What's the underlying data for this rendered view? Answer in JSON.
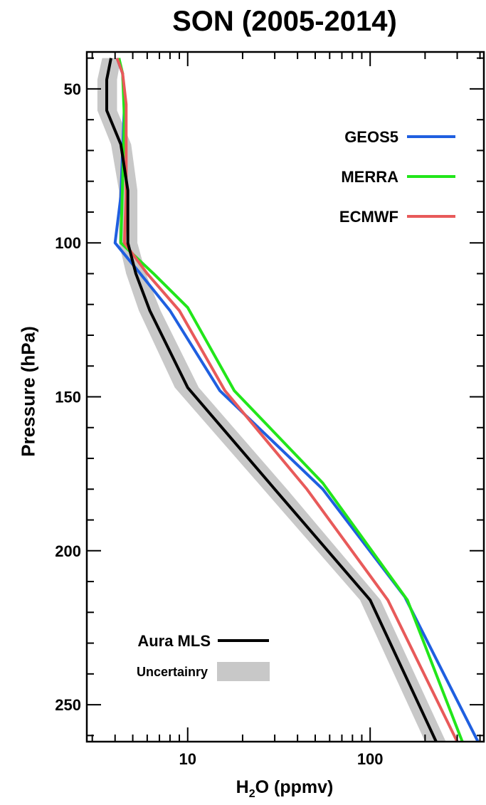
{
  "chart_data": {
    "type": "line",
    "title": "SON (2005-2014)",
    "xlabel_main": "H",
    "xlabel_sub": "2",
    "xlabel_rest": "O (ppmv)",
    "ylabel": "Pressure (hPa)",
    "x_scale": "log",
    "xlim": [
      2.8,
      420
    ],
    "ylim": [
      262,
      38
    ],
    "x_ticks": [
      10,
      100
    ],
    "x_tick_labels": [
      "10",
      "100"
    ],
    "y_ticks": [
      50,
      100,
      150,
      200,
      250
    ],
    "y_tick_labels": [
      "50",
      "100",
      "150",
      "200",
      "250"
    ],
    "series": [
      {
        "name": "GEOS5",
        "color": "#1f5fe0",
        "points": [
          [
            4.1,
            40
          ],
          [
            4.4,
            45
          ],
          [
            4.5,
            55
          ],
          [
            4.4,
            70
          ],
          [
            4.3,
            85
          ],
          [
            4.0,
            100
          ],
          [
            5.5,
            110
          ],
          [
            8,
            122
          ],
          [
            15,
            148
          ],
          [
            55,
            180
          ],
          [
            155,
            215
          ],
          [
            390,
            262
          ]
        ]
      },
      {
        "name": "MERRA",
        "color": "#22e61a",
        "points": [
          [
            4.2,
            40
          ],
          [
            4.4,
            45
          ],
          [
            4.5,
            60
          ],
          [
            4.4,
            80
          ],
          [
            4.3,
            100
          ],
          [
            6.5,
            110
          ],
          [
            10,
            121
          ],
          [
            18,
            148
          ],
          [
            55,
            178
          ],
          [
            160,
            216
          ],
          [
            320,
            262
          ]
        ]
      },
      {
        "name": "ECMWF",
        "color": "#e85a5a",
        "points": [
          [
            4.1,
            40
          ],
          [
            4.4,
            45
          ],
          [
            4.6,
            55
          ],
          [
            4.6,
            70
          ],
          [
            4.6,
            85
          ],
          [
            4.5,
            100
          ],
          [
            6.0,
            110
          ],
          [
            9,
            122
          ],
          [
            16,
            148
          ],
          [
            45,
            180
          ],
          [
            125,
            216
          ],
          [
            300,
            262
          ]
        ]
      },
      {
        "name": "Aura MLS",
        "color": "#000000",
        "points": [
          [
            3.8,
            40
          ],
          [
            3.6,
            47
          ],
          [
            3.6,
            57
          ],
          [
            4.3,
            68
          ],
          [
            4.7,
            83
          ],
          [
            4.7,
            100
          ],
          [
            5.2,
            110
          ],
          [
            6.2,
            122
          ],
          [
            10,
            147
          ],
          [
            30,
            180
          ],
          [
            100,
            216
          ],
          [
            230,
            262
          ]
        ]
      }
    ],
    "uncertainty": {
      "name": "Uncertainry",
      "color": "#c8c8c8",
      "lower": [
        [
          3.4,
          40
        ],
        [
          3.2,
          47
        ],
        [
          3.2,
          57
        ],
        [
          3.8,
          68
        ],
        [
          4.2,
          83
        ],
        [
          4.2,
          100
        ],
        [
          4.6,
          110
        ],
        [
          5.4,
          122
        ],
        [
          8.5,
          147
        ],
        [
          26,
          180
        ],
        [
          88,
          216
        ],
        [
          200,
          262
        ]
      ],
      "upper": [
        [
          4.3,
          40
        ],
        [
          4.1,
          47
        ],
        [
          4.1,
          57
        ],
        [
          4.9,
          68
        ],
        [
          5.3,
          83
        ],
        [
          5.3,
          100
        ],
        [
          5.9,
          110
        ],
        [
          7.1,
          122
        ],
        [
          11.5,
          147
        ],
        [
          35,
          180
        ],
        [
          114,
          216
        ],
        [
          260,
          262
        ]
      ]
    },
    "legend_top": [
      "GEOS5",
      "MERRA",
      "ECMWF"
    ],
    "legend_bottom": [
      "Aura MLS",
      "Uncertainry"
    ],
    "legend_placement_top": "top-right",
    "legend_placement_bottom": "bottom-left"
  }
}
